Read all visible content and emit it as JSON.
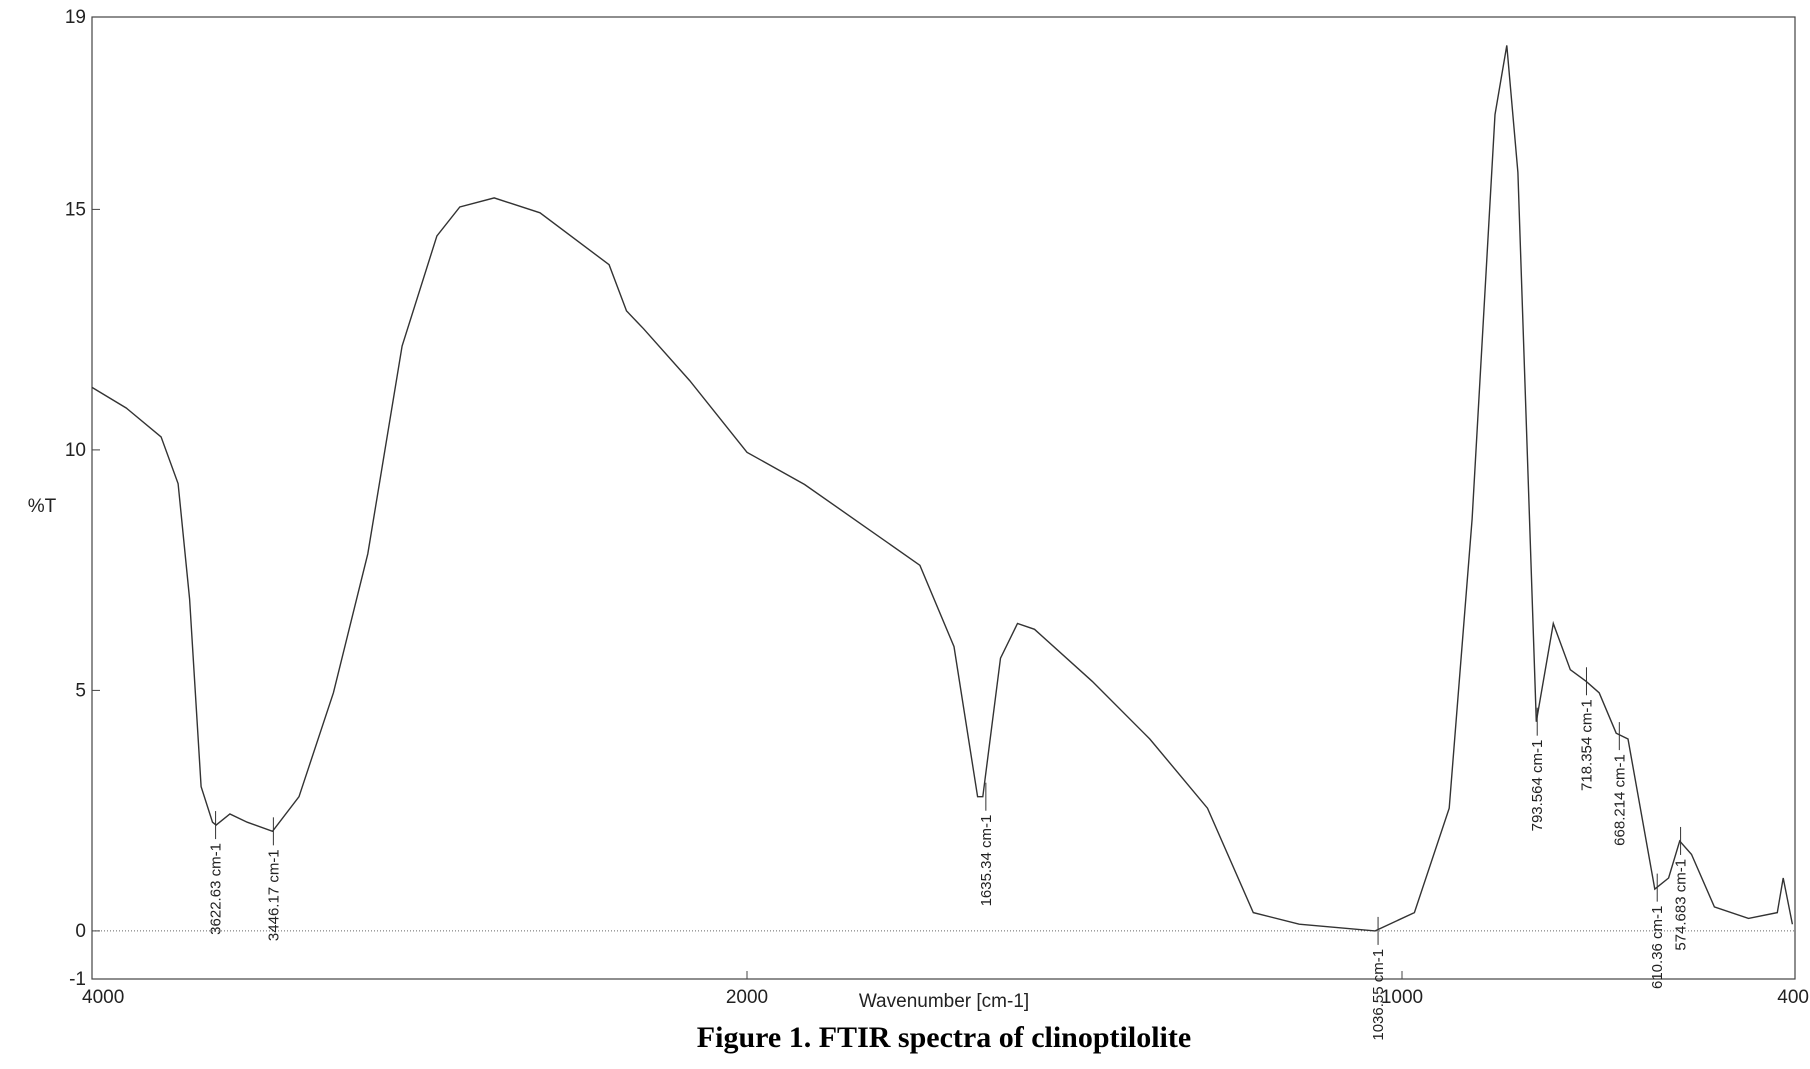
{
  "chart_data": {
    "type": "line",
    "x_label": "Wavenumber [cm-1]",
    "y_label": "%T",
    "caption": "Figure 1. FTIR spectra of clinoptilolite",
    "xlim": [
      4000,
      400
    ],
    "x_scale_break": 2000,
    "xticks": [
      4000,
      2000,
      1000,
      400
    ],
    "ylim": [
      -1,
      19
    ],
    "yticks": [
      -1,
      0,
      5,
      10,
      15,
      19
    ],
    "baseline": 0,
    "series": [
      {
        "color": "#333333",
        "x": [
          4000,
          3895,
          3789,
          3737,
          3702,
          3667,
          3632,
          3621,
          3579,
          3526,
          3449,
          3368,
          3263,
          3158,
          3053,
          2947,
          2877,
          2772,
          2632,
          2421,
          2368,
          2316,
          2175,
          2000,
          1912,
          1824,
          1736,
          1684,
          1648,
          1640,
          1613,
          1587,
          1561,
          1473,
          1385,
          1297,
          1227,
          1157,
          1041,
          981,
          928,
          893,
          858,
          840,
          823,
          795,
          769,
          743,
          719,
          699,
          673,
          655,
          614,
          593,
          576,
          558,
          523,
          471,
          427,
          418,
          404
        ],
        "values": [
          11.3,
          10.87,
          10.27,
          9.3,
          6.9,
          3.0,
          2.26,
          2.2,
          2.43,
          2.26,
          2.07,
          2.79,
          4.95,
          7.84,
          12.16,
          14.45,
          15.05,
          15.24,
          14.93,
          13.85,
          12.89,
          12.52,
          11.44,
          9.95,
          9.28,
          8.44,
          7.6,
          5.91,
          2.79,
          2.79,
          5.67,
          6.39,
          6.27,
          5.19,
          3.99,
          2.55,
          0.38,
          0.14,
          0,
          0.38,
          2.55,
          8.56,
          16.97,
          18.41,
          15.77,
          4.35,
          6.39,
          5.43,
          5.19,
          4.95,
          4.11,
          3.99,
          0.87,
          1.1,
          1.87,
          1.59,
          0.5,
          0.26,
          0.38,
          1.1,
          0.14
        ]
      }
    ],
    "annotations": [
      {
        "x": 3622.63,
        "y": 2.2,
        "label": "3622.63 cm-1"
      },
      {
        "x": 3446.17,
        "y": 2.07,
        "label": "3446.17 cm-1"
      },
      {
        "x": 1635.34,
        "y": 2.79,
        "label": "1635.34 cm-1"
      },
      {
        "x": 1036.55,
        "y": 0,
        "label": "1036.55 cm-1"
      },
      {
        "x": 793.564,
        "y": 4.35,
        "label": "793.564 cm-1"
      },
      {
        "x": 718.354,
        "y": 5.19,
        "label": "718.354 cm-1"
      },
      {
        "x": 668.214,
        "y": 4.05,
        "label": "668.214 cm-1"
      },
      {
        "x": 610.36,
        "y": 0.9,
        "label": "610.36 cm-1"
      },
      {
        "x": 574.683,
        "y": 1.87,
        "label": "574.683 cm-1"
      }
    ]
  }
}
